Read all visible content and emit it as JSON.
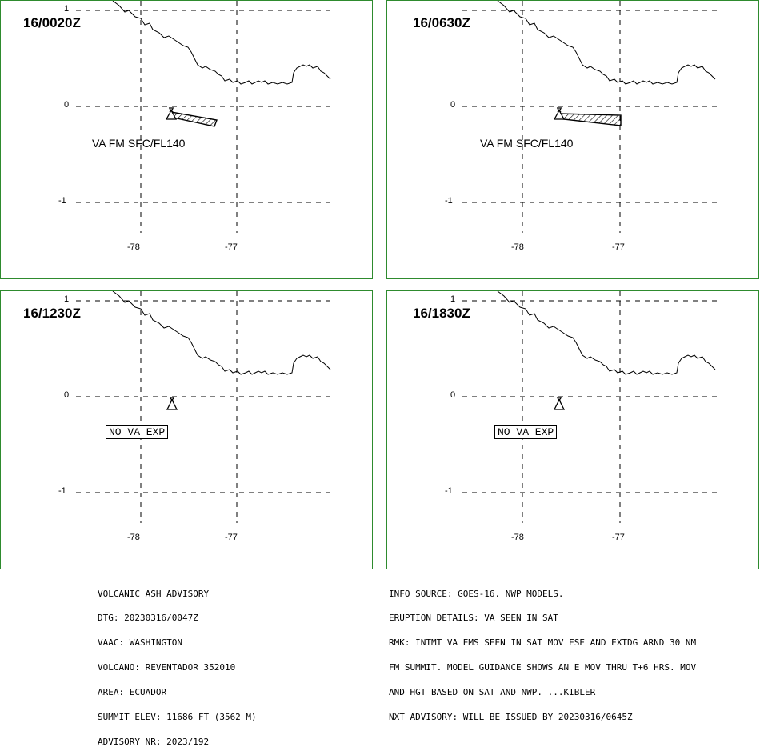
{
  "panels": [
    {
      "time": "16/0020Z",
      "label": "VA FM SFC/FL140",
      "kind": "ash"
    },
    {
      "time": "16/0630Z",
      "label": "VA FM SFC/FL140",
      "kind": "ash"
    },
    {
      "time": "16/1230Z",
      "label": "NO VA EXP",
      "kind": "none"
    },
    {
      "time": "16/1830Z",
      "label": "NO VA EXP",
      "kind": "none"
    }
  ],
  "axes": {
    "y_ticks": [
      "1",
      "0",
      "-1"
    ],
    "x_ticks": [
      "-78",
      "-77"
    ]
  },
  "advisory_left": [
    "VOLCANIC ASH ADVISORY",
    "DTG: 20230316/0047Z",
    "VAAC: WASHINGTON",
    "VOLCANO: REVENTADOR 352010",
    "AREA: ECUADOR",
    "SUMMIT ELEV: 11686 FT (3562 M)",
    "ADVISORY NR: 2023/192"
  ],
  "advisory_right": [
    "INFO SOURCE: GOES-16. NWP MODELS.",
    "ERUPTION DETAILS: VA SEEN IN SAT",
    "RMK: INTMT VA EMS SEEN IN SAT MOV ESE AND EXTDG ARND 30 NM",
    "FM SUMMIT. MODEL GUIDANCE SHOWS AN E MOV THRU T+6 HRS. MOV",
    "AND HGT BASED ON SAT AND NWP. ...KIBLER",
    "NXT ADVISORY: WILL BE ISSUED BY 20230316/0645Z"
  ],
  "colors": {
    "panel_border": "#2e8b2e"
  }
}
